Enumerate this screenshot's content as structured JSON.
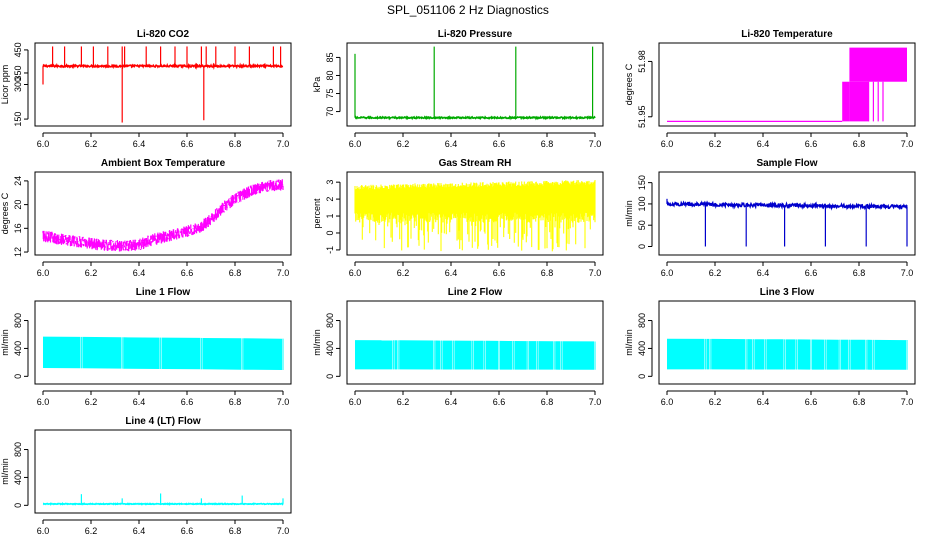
{
  "figure": {
    "title": "SPL_051106  2 Hz Diagnostics"
  },
  "chart_data": [
    {
      "type": "line",
      "title": "Li-820 CO2",
      "xlabel": "",
      "ylabel": "Licor ppm",
      "color": "#ff0000",
      "xlim": [
        6.0,
        7.0
      ],
      "ylim": [
        120,
        480
      ],
      "xticks": [
        6.0,
        6.2,
        6.4,
        6.6,
        6.8,
        7.0
      ],
      "yticks": [
        150,
        300,
        350,
        450
      ],
      "xtick_labels": [
        "6.0",
        "6.2",
        "6.4",
        "6.6",
        "6.8",
        "7.0"
      ],
      "ytick_labels": [
        "150",
        "300",
        "350",
        "450"
      ],
      "series": [
        {
          "pattern": "band_spikes",
          "base": 380,
          "noise": 4,
          "spikes": [
            [
              6.0,
              300
            ],
            [
              6.04,
              465
            ],
            [
              6.09,
              465
            ],
            [
              6.16,
              465
            ],
            [
              6.21,
              465
            ],
            [
              6.27,
              465
            ],
            [
              6.33,
              135
            ],
            [
              6.33,
              465
            ],
            [
              6.34,
              465
            ],
            [
              6.43,
              465
            ],
            [
              6.49,
              465
            ],
            [
              6.55,
              465
            ],
            [
              6.6,
              465
            ],
            [
              6.66,
              465
            ],
            [
              6.67,
              145
            ],
            [
              6.68,
              465
            ],
            [
              6.72,
              465
            ],
            [
              6.8,
              465
            ],
            [
              6.86,
              465
            ],
            [
              6.96,
              465
            ],
            [
              6.99,
              465
            ]
          ]
        }
      ]
    },
    {
      "type": "line",
      "title": "Li-820 Pressure",
      "xlabel": "",
      "ylabel": "kPa",
      "color": "#00aa00",
      "xlim": [
        6.0,
        7.0
      ],
      "ylim": [
        66,
        89
      ],
      "xticks": [
        6.0,
        6.2,
        6.4,
        6.6,
        6.8,
        7.0
      ],
      "yticks": [
        70,
        75,
        80,
        85
      ],
      "xtick_labels": [
        "6.0",
        "6.2",
        "6.4",
        "6.6",
        "6.8",
        "7.0"
      ],
      "ytick_labels": [
        "70",
        "75",
        "80",
        "85"
      ],
      "series": [
        {
          "pattern": "band_spikes",
          "base": 68.3,
          "noise": 0.2,
          "spikes": [
            [
              6.0,
              86
            ],
            [
              6.33,
              88
            ],
            [
              6.67,
              88
            ],
            [
              6.99,
              88
            ]
          ]
        }
      ]
    },
    {
      "type": "line",
      "title": "Li-820 Temperature",
      "xlabel": "",
      "ylabel": "degrees C",
      "color": "#ff00ff",
      "xlim": [
        6.0,
        7.0
      ],
      "ylim": [
        51.945,
        51.99
      ],
      "xticks": [
        6.0,
        6.2,
        6.4,
        6.6,
        6.8,
        7.0
      ],
      "yticks": [
        51.95,
        51.98
      ],
      "xtick_labels": [
        "6.0",
        "6.2",
        "6.4",
        "6.6",
        "6.8",
        "7.0"
      ],
      "ytick_labels": [
        "51.95",
        "51.98"
      ],
      "series": [
        {
          "pattern": "levels",
          "low": 51.9475,
          "mid": 51.969,
          "high": 51.9875,
          "mid_start": 6.73,
          "high_start": 6.76,
          "end": 7.0,
          "gaps": [
            6.84,
            6.86,
            6.88,
            6.9
          ]
        }
      ]
    },
    {
      "type": "line",
      "title": "Ambient Box Temperature",
      "xlabel": "",
      "ylabel": "degrees C",
      "color": "#ff00ff",
      "xlim": [
        6.0,
        7.0
      ],
      "ylim": [
        11.5,
        25.5
      ],
      "xticks": [
        6.0,
        6.2,
        6.4,
        6.6,
        6.8,
        7.0
      ],
      "yticks": [
        12,
        16,
        20,
        24
      ],
      "xtick_labels": [
        "6.0",
        "6.2",
        "6.4",
        "6.6",
        "6.8",
        "7.0"
      ],
      "ytick_labels": [
        "12",
        "16",
        "20",
        "24"
      ],
      "series": [
        {
          "pattern": "noisy_curve",
          "noise": 1.0,
          "x": [
            6.0,
            6.1,
            6.2,
            6.3,
            6.4,
            6.45,
            6.5,
            6.6,
            6.65,
            6.7,
            6.75,
            6.8,
            6.85,
            6.9,
            6.95,
            7.0
          ],
          "y": [
            14.7,
            14.0,
            13.4,
            13.0,
            13.2,
            14.0,
            14.5,
            15.5,
            16.0,
            17.5,
            19.5,
            21.0,
            22.0,
            22.8,
            23.2,
            23.4
          ]
        }
      ]
    },
    {
      "type": "line",
      "title": "Gas Stream RH",
      "xlabel": "",
      "ylabel": "percent",
      "color": "#ffff00",
      "xlim": [
        6.0,
        7.0
      ],
      "ylim": [
        -1.3,
        3.6
      ],
      "xticks": [
        6.0,
        6.2,
        6.4,
        6.6,
        6.8,
        7.0
      ],
      "yticks": [
        -1,
        0,
        1,
        2,
        3
      ],
      "xtick_labels": [
        "6.0",
        "6.2",
        "6.4",
        "6.6",
        "6.8",
        "7.0"
      ],
      "ytick_labels": [
        "-1",
        "0",
        "1",
        "2",
        "3"
      ],
      "series": [
        {
          "pattern": "fill_band",
          "top_start": 2.7,
          "top_end": 3.0,
          "bottom": 0.9,
          "dip_min": -1.1
        }
      ]
    },
    {
      "type": "line",
      "title": "Sample Flow",
      "xlabel": "",
      "ylabel": "ml/min",
      "color": "#0000cc",
      "xlim": [
        6.0,
        7.0
      ],
      "ylim": [
        -20,
        175
      ],
      "xticks": [
        6.0,
        6.2,
        6.4,
        6.6,
        6.8,
        7.0
      ],
      "yticks": [
        0,
        50,
        100,
        150
      ],
      "xtick_labels": [
        "6.0",
        "6.2",
        "6.4",
        "6.6",
        "6.8",
        "7.0"
      ],
      "ytick_labels": [
        "0",
        "50",
        "100",
        "150"
      ],
      "series": [
        {
          "pattern": "band_spikes",
          "base_start": 100,
          "base_end": 93,
          "noise": 4,
          "spikes": [
            [
              6.0,
              112
            ],
            [
              6.16,
              0
            ],
            [
              6.33,
              0
            ],
            [
              6.49,
              0
            ],
            [
              6.66,
              0
            ],
            [
              6.83,
              0
            ],
            [
              7.0,
              0
            ]
          ]
        }
      ]
    },
    {
      "type": "area",
      "title": "Line 1 Flow",
      "xlabel": "",
      "ylabel": "ml/min",
      "color": "#00ffff",
      "xlim": [
        6.0,
        7.0
      ],
      "ylim": [
        -110,
        1080
      ],
      "xticks": [
        6.0,
        6.2,
        6.4,
        6.6,
        6.8,
        7.0
      ],
      "yticks": [
        0,
        400,
        800
      ],
      "xtick_labels": [
        "6.0",
        "6.2",
        "6.4",
        "6.6",
        "6.8",
        "7.0"
      ],
      "ytick_labels": [
        "0",
        "400",
        "800"
      ],
      "series": [
        {
          "pattern": "blocks",
          "top_start": 570,
          "top_end": 540,
          "bottom_start": 120,
          "bottom_end": 90,
          "cuts": [
            6.16,
            6.33,
            6.49,
            6.66,
            6.83,
            7.0
          ]
        }
      ]
    },
    {
      "type": "area",
      "title": "Line 2 Flow",
      "xlabel": "",
      "ylabel": "ml/min",
      "color": "#00ffff",
      "xlim": [
        6.0,
        7.0
      ],
      "ylim": [
        -110,
        1080
      ],
      "xticks": [
        6.0,
        6.2,
        6.4,
        6.6,
        6.8,
        7.0
      ],
      "yticks": [
        0,
        400,
        800
      ],
      "xtick_labels": [
        "6.0",
        "6.2",
        "6.4",
        "6.6",
        "6.8",
        "7.0"
      ],
      "ytick_labels": [
        "0",
        "400",
        "800"
      ],
      "series": [
        {
          "pattern": "blocks",
          "top_start": 520,
          "top_end": 500,
          "bottom_start": 100,
          "bottom_end": 95,
          "cuts": [
            6.16,
            6.18,
            6.33,
            6.36,
            6.41,
            6.49,
            6.54,
            6.6,
            6.66,
            6.72,
            6.76,
            6.83,
            6.86,
            7.0
          ]
        }
      ]
    },
    {
      "type": "area",
      "title": "Line 3 Flow",
      "xlabel": "",
      "ylabel": "ml/min",
      "color": "#00ffff",
      "xlim": [
        6.0,
        7.0
      ],
      "ylim": [
        -110,
        1080
      ],
      "xticks": [
        6.0,
        6.2,
        6.4,
        6.6,
        6.8,
        7.0
      ],
      "yticks": [
        0,
        400,
        800
      ],
      "xtick_labels": [
        "6.0",
        "6.2",
        "6.4",
        "6.6",
        "6.8",
        "7.0"
      ],
      "ytick_labels": [
        "0",
        "400",
        "800"
      ],
      "series": [
        {
          "pattern": "blocks",
          "top_start": 540,
          "top_end": 520,
          "bottom_start": 100,
          "bottom_end": 95,
          "cuts": [
            6.16,
            6.18,
            6.33,
            6.36,
            6.41,
            6.49,
            6.54,
            6.6,
            6.66,
            6.72,
            6.76,
            6.83,
            6.86,
            7.0
          ]
        }
      ]
    },
    {
      "type": "line",
      "title": "Line 4 (LT) Flow",
      "xlabel": "",
      "ylabel": "ml/min",
      "color": "#00ffff",
      "xlim": [
        6.0,
        7.0
      ],
      "ylim": [
        -110,
        1080
      ],
      "xticks": [
        6.0,
        6.2,
        6.4,
        6.6,
        6.8,
        7.0
      ],
      "yticks": [
        0,
        400,
        800
      ],
      "xtick_labels": [
        "6.0",
        "6.2",
        "6.4",
        "6.6",
        "6.8",
        "7.0"
      ],
      "ytick_labels": [
        "0",
        "400",
        "800"
      ],
      "series": [
        {
          "pattern": "band_spikes",
          "base": 20,
          "noise": 6,
          "spikes": [
            [
              6.16,
              160
            ],
            [
              6.33,
              100
            ],
            [
              6.49,
              170
            ],
            [
              6.66,
              100
            ],
            [
              6.83,
              140
            ],
            [
              7.0,
              100
            ]
          ]
        }
      ]
    }
  ]
}
